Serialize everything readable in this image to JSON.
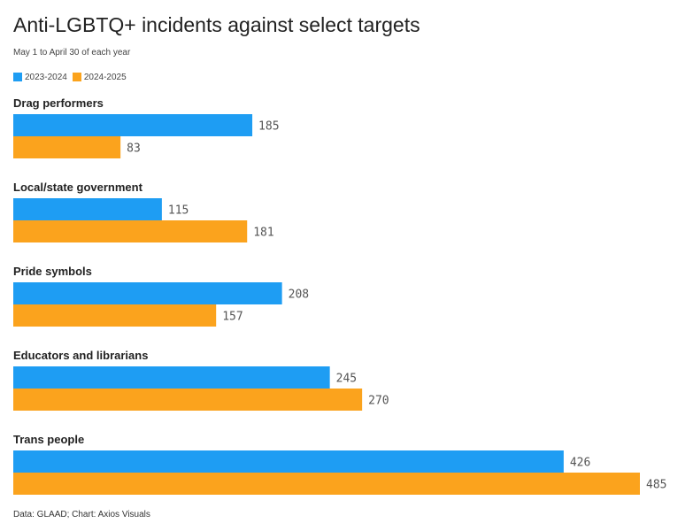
{
  "title": "Anti-LGBTQ+ incidents against select targets",
  "subtitle": "May 1 to April 30 of each year",
  "footer": "Data: GLAAD; Chart: Axios Visuals",
  "chart_data": {
    "type": "bar",
    "orientation": "horizontal",
    "title": "Anti-LGBTQ+ incidents against select targets",
    "subtitle": "May 1 to April 30 of each year",
    "categories": [
      "Drag performers",
      "Local/state government",
      "Pride symbols",
      "Educators and librarians",
      "Trans people"
    ],
    "series": [
      {
        "name": "2023-2024",
        "color": "#1e9df3",
        "values": [
          185,
          115,
          208,
          245,
          426
        ]
      },
      {
        "name": "2024-2025",
        "color": "#fba31d",
        "values": [
          83,
          181,
          157,
          270,
          485
        ]
      }
    ],
    "xlim": [
      0,
      485
    ],
    "grid": false,
    "legend_position": "top-left",
    "data_labels": true
  }
}
